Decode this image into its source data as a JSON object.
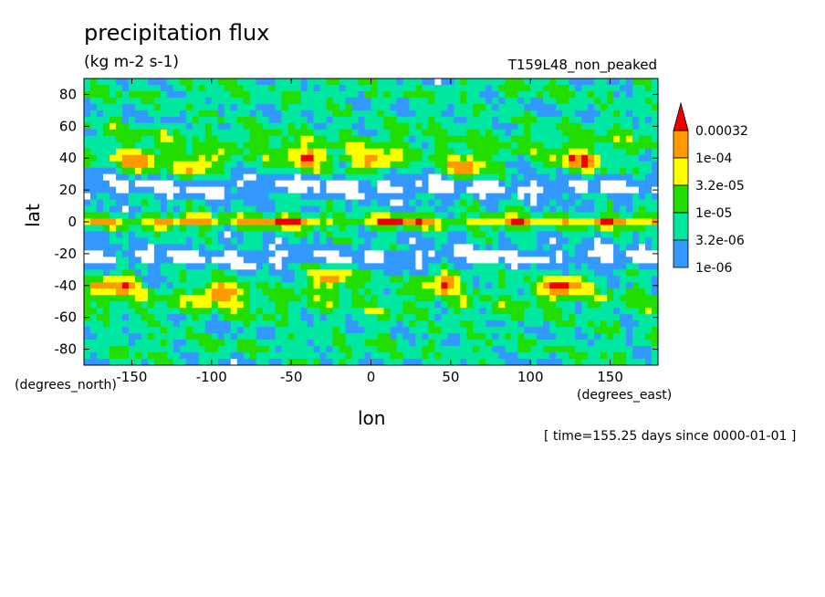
{
  "chart_data": {
    "type": "heatmap",
    "title": "precipitation flux",
    "units": "(kg m-2 s-1)",
    "run_label": "T159L48_non_peaked",
    "xlabel": "lon",
    "ylabel": "lat",
    "x_unit_label": "(degrees_east)",
    "y_unit_label": "(degrees_north)",
    "xlim": [
      -180,
      180
    ],
    "ylim": [
      -90,
      90
    ],
    "x_ticks": [
      -150,
      -100,
      -50,
      0,
      50,
      100,
      150
    ],
    "y_ticks": [
      80,
      60,
      40,
      20,
      0,
      -20,
      -40,
      -60,
      -80
    ],
    "time_label": "[ time=155.25 days since 0000-01-01 ]",
    "colorbar": {
      "levels": [
        "1e-06",
        "3.2e-06",
        "1e-05",
        "3.2e-05",
        "1e-04",
        "0.00032"
      ],
      "colors": [
        "#ffffff",
        "#3399ff",
        "#00e8a0",
        "#22dd00",
        "#ffff00",
        "#ff9900",
        "#ee0000"
      ]
    },
    "features": {
      "itcz_lat": 0,
      "storm_tracks": [
        {
          "lon": -145,
          "lat": 38
        },
        {
          "lon": -110,
          "lat": 35
        },
        {
          "lon": -40,
          "lat": 40
        },
        {
          "lon": 2,
          "lat": 38
        },
        {
          "lon": 60,
          "lat": 35
        },
        {
          "lon": 130,
          "lat": 38
        },
        {
          "lon": -160,
          "lat": -40
        },
        {
          "lon": -95,
          "lat": -45
        },
        {
          "lon": -25,
          "lat": -35
        },
        {
          "lon": 45,
          "lat": -38
        },
        {
          "lon": 120,
          "lat": -40
        }
      ]
    }
  }
}
